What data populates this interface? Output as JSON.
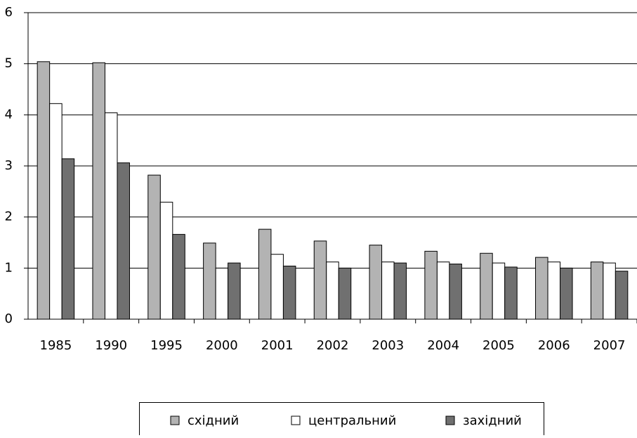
{
  "chart_data": {
    "type": "bar",
    "categories": [
      "1985",
      "1990",
      "1995",
      "2000",
      "2001",
      "2002",
      "2003",
      "2004",
      "2005",
      "2006",
      "2007"
    ],
    "series": [
      {
        "name": "східний",
        "color": "#b3b3b3",
        "values": [
          5.04,
          5.02,
          2.82,
          1.49,
          1.76,
          1.53,
          1.45,
          1.33,
          1.29,
          1.21,
          1.12
        ]
      },
      {
        "name": "центральний",
        "color": "#ffffff",
        "values": [
          4.22,
          4.04,
          2.29,
          1.0,
          1.27,
          1.12,
          1.12,
          1.12,
          1.1,
          1.12,
          1.1
        ]
      },
      {
        "name": "західний",
        "color": "#707070",
        "values": [
          3.14,
          3.06,
          1.66,
          1.1,
          1.04,
          1.0,
          1.1,
          1.08,
          1.02,
          1.0,
          0.94
        ]
      }
    ],
    "ylim": [
      0,
      6
    ],
    "yticks": [
      0,
      1,
      2,
      3,
      4,
      5,
      6
    ],
    "grid": true,
    "legend": "bottom"
  }
}
